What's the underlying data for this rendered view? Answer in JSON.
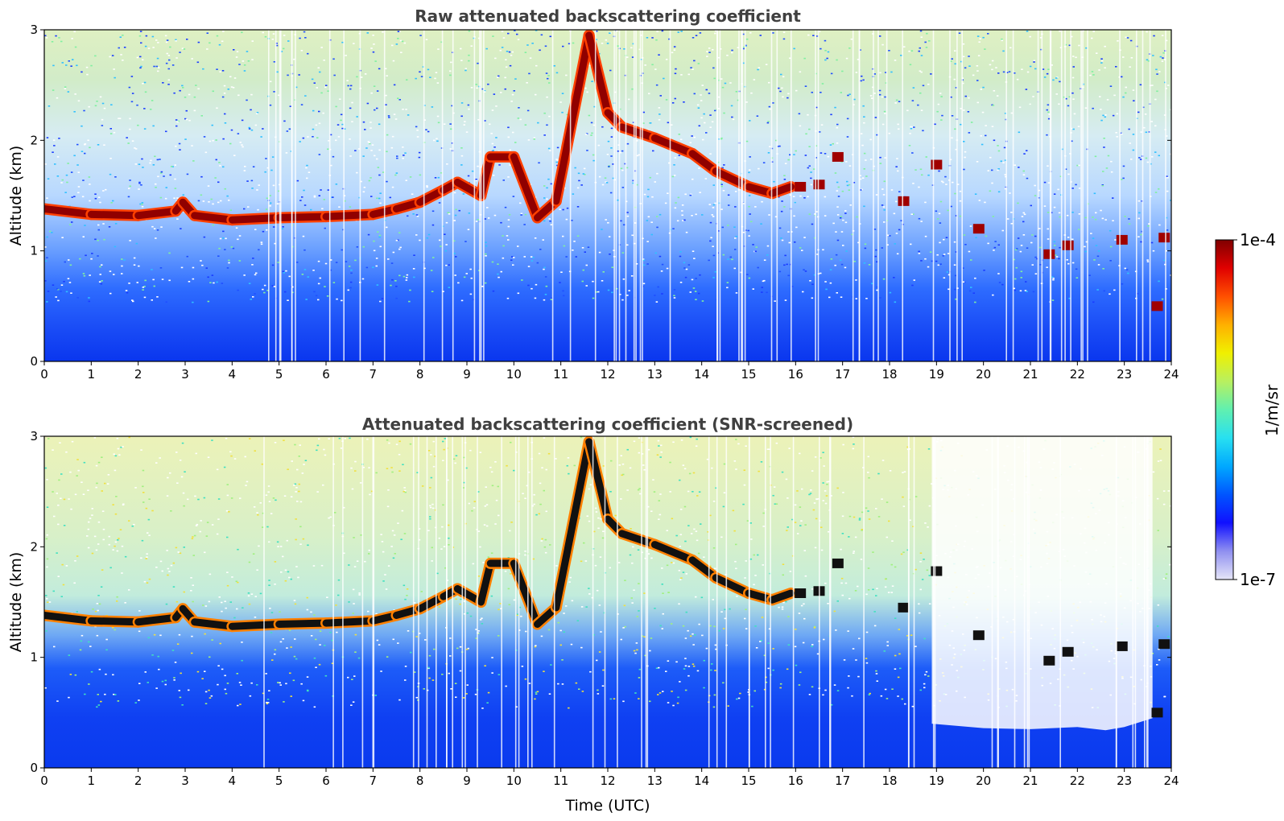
{
  "chart_data": [
    {
      "type": "heatmap",
      "title": "Raw attenuated backscattering coefficient",
      "xlabel": "",
      "ylabel": "Altitude (km)",
      "xlim": [
        0,
        24
      ],
      "ylim": [
        0,
        3
      ],
      "xticks": [
        "0",
        "1",
        "2",
        "3",
        "4",
        "5",
        "6",
        "7",
        "8",
        "9",
        "10",
        "11",
        "12",
        "13",
        "14",
        "15",
        "16",
        "17",
        "18",
        "19",
        "20",
        "21",
        "22",
        "23",
        "24"
      ],
      "yticks": [
        "0",
        "1",
        "2",
        "3"
      ],
      "cloud_layer": [
        {
          "x": 0,
          "y": 1.38
        },
        {
          "x": 1,
          "y": 1.33
        },
        {
          "x": 2,
          "y": 1.32
        },
        {
          "x": 2.8,
          "y": 1.36
        },
        {
          "x": 2.95,
          "y": 1.44
        },
        {
          "x": 3.2,
          "y": 1.32
        },
        {
          "x": 4,
          "y": 1.28
        },
        {
          "x": 5,
          "y": 1.3
        },
        {
          "x": 6,
          "y": 1.31
        },
        {
          "x": 7,
          "y": 1.33
        },
        {
          "x": 7.5,
          "y": 1.38
        },
        {
          "x": 8,
          "y": 1.44
        },
        {
          "x": 8.5,
          "y": 1.55
        },
        {
          "x": 8.8,
          "y": 1.62
        },
        {
          "x": 9.3,
          "y": 1.5
        },
        {
          "x": 9.5,
          "y": 1.85
        },
        {
          "x": 10,
          "y": 1.85
        },
        {
          "x": 10.5,
          "y": 1.3
        },
        {
          "x": 10.9,
          "y": 1.45
        },
        {
          "x": 11.6,
          "y": 2.95
        },
        {
          "x": 12,
          "y": 2.25
        },
        {
          "x": 12.3,
          "y": 2.12
        },
        {
          "x": 13,
          "y": 2.02
        },
        {
          "x": 13.8,
          "y": 1.88
        },
        {
          "x": 14.3,
          "y": 1.72
        },
        {
          "x": 15,
          "y": 1.58
        },
        {
          "x": 15.5,
          "y": 1.52
        },
        {
          "x": 15.9,
          "y": 1.58
        }
      ],
      "cloud_fragments": [
        {
          "x": 16.1,
          "y": 1.58
        },
        {
          "x": 16.5,
          "y": 1.6
        },
        {
          "x": 16.9,
          "y": 1.85
        },
        {
          "x": 18.3,
          "y": 1.45
        },
        {
          "x": 19.0,
          "y": 1.78
        },
        {
          "x": 19.9,
          "y": 1.2
        },
        {
          "x": 21.4,
          "y": 0.97
        },
        {
          "x": 21.8,
          "y": 1.05
        },
        {
          "x": 22.95,
          "y": 1.1
        },
        {
          "x": 23.7,
          "y": 0.5
        },
        {
          "x": 23.85,
          "y": 1.12
        }
      ]
    },
    {
      "type": "heatmap",
      "title": "Attenuated backscattering coefficient (SNR-screened)",
      "xlabel": "Time (UTC)",
      "ylabel": "Altitude (km)",
      "xlim": [
        0,
        24
      ],
      "ylim": [
        0,
        3
      ],
      "xticks": [
        "0",
        "1",
        "2",
        "3",
        "4",
        "5",
        "6",
        "7",
        "8",
        "9",
        "10",
        "11",
        "12",
        "13",
        "14",
        "15",
        "16",
        "17",
        "18",
        "19",
        "20",
        "21",
        "22",
        "23",
        "24"
      ],
      "yticks": [
        "0",
        "1",
        "2",
        "3"
      ],
      "screened_region_top": [
        {
          "x": 18.9,
          "y": 0.4
        },
        {
          "x": 20,
          "y": 0.36
        },
        {
          "x": 21,
          "y": 0.35
        },
        {
          "x": 22,
          "y": 0.37
        },
        {
          "x": 22.6,
          "y": 0.34
        },
        {
          "x": 23,
          "y": 0.37
        },
        {
          "x": 23.6,
          "y": 0.45
        }
      ]
    }
  ],
  "colorbar": {
    "label": "1/m/sr",
    "max_label": "1e-4",
    "min_label": "1e-7",
    "colors": [
      "#e6e6f8",
      "#9090f0",
      "#1010ff",
      "#0055ff",
      "#00a8ff",
      "#28e0f0",
      "#60f0b0",
      "#b8f060",
      "#f0f000",
      "#ffb000",
      "#ff5000",
      "#e00000",
      "#800000"
    ]
  }
}
